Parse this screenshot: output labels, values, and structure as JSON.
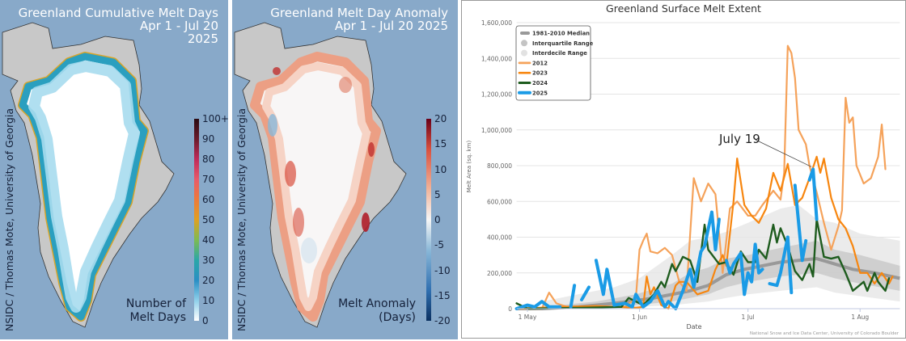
{
  "left_map": {
    "title_lines": [
      "Greenland Cumulative Melt Days",
      "Apr 1 - Jul 20",
      "2025"
    ],
    "credit": "NSIDC / Thomas Mote, University of Georgia",
    "colorbar_labels": [
      "100+",
      "90",
      "80",
      "70",
      "60",
      "50",
      "40",
      "30",
      "20",
      "10",
      "0"
    ],
    "colorbar_colors": [
      "#ffffff",
      "#8fd0ea",
      "#2a8fc4",
      "#2aa7a8",
      "#7dbb52",
      "#e0a020",
      "#ee7a3a",
      "#e85a6a",
      "#c02a5a",
      "#6a1a2a",
      "#2a0a10"
    ],
    "legend_lines": [
      "Number of",
      "Melt Days"
    ]
  },
  "middle_map": {
    "title_lines": [
      "Greenland Melt Day Anomaly",
      "Apr 1 - Jul 20 2025"
    ],
    "credit": "NSIDC / Thomas Mote, University of Georgia",
    "colorbar_labels": [
      "20",
      "15",
      "10",
      "5",
      "0",
      "-5",
      "-10",
      "-15",
      "-20"
    ],
    "colorbar_colors": [
      "#0b3060",
      "#2f6fb0",
      "#8ab8d8",
      "#f6f6f6",
      "#f2b49a",
      "#d9503e",
      "#6a0018"
    ],
    "legend_lines": [
      "Melt Anomaly",
      "(Days)"
    ]
  },
  "chart_data": {
    "type": "line",
    "title": "Greenland Surface Melt Extent",
    "xlabel": "Date",
    "ylabel": "Melt Area (sq. km)",
    "ylim": [
      0,
      1600000
    ],
    "yticks": [
      "0",
      "200,000",
      "400,000",
      "600,000",
      "800,000",
      "1,000,000",
      "1,200,000",
      "1,400,000",
      "1,600,000"
    ],
    "ytick_values": [
      0,
      200000,
      400000,
      600000,
      800000,
      1000000,
      1200000,
      1400000,
      1600000
    ],
    "xticks": [
      {
        "label": "1 May",
        "date": "05-01"
      },
      {
        "label": "1 Jun",
        "date": "06-01"
      },
      {
        "label": "1 Jul",
        "date": "07-01"
      },
      {
        "label": "1 Aug",
        "date": "08-01"
      }
    ],
    "xlim": [
      "04-28",
      "08-12"
    ],
    "grid": true,
    "legend_position": "top-left",
    "source": "National Snow and Ice Data Center, University of Colorado Boulder",
    "annotation": {
      "text": "July 19",
      "date": "07-19",
      "value": 780000
    },
    "median": {
      "name": "1981-2010 Median",
      "color": "#999999",
      "points": [
        [
          "04-28",
          0
        ],
        [
          "05-05",
          0
        ],
        [
          "05-10",
          5000
        ],
        [
          "05-15",
          10000
        ],
        [
          "05-20",
          20000
        ],
        [
          "05-25",
          30000
        ],
        [
          "05-31",
          45000
        ],
        [
          "06-05",
          60000
        ],
        [
          "06-10",
          80000
        ],
        [
          "06-15",
          100000
        ],
        [
          "06-20",
          130000
        ],
        [
          "06-25",
          190000
        ],
        [
          "06-30",
          220000
        ],
        [
          "07-05",
          240000
        ],
        [
          "07-10",
          260000
        ],
        [
          "07-15",
          270000
        ],
        [
          "07-20",
          280000
        ],
        [
          "07-25",
          250000
        ],
        [
          "07-30",
          220000
        ],
        [
          "08-05",
          200000
        ],
        [
          "08-12",
          170000
        ]
      ]
    },
    "interquartile_range": {
      "name": "Interquartile Range",
      "color": "#c8c8c8",
      "points": [
        [
          "05-10",
          0,
          20000
        ],
        [
          "05-20",
          5000,
          40000
        ],
        [
          "05-31",
          20000,
          80000
        ],
        [
          "06-10",
          40000,
          140000
        ],
        [
          "06-15",
          60000,
          200000
        ],
        [
          "06-20",
          80000,
          230000
        ],
        [
          "06-25",
          120000,
          280000
        ],
        [
          "07-01",
          150000,
          300000
        ],
        [
          "07-10",
          180000,
          340000
        ],
        [
          "07-20",
          200000,
          380000
        ],
        [
          "07-25",
          170000,
          330000
        ],
        [
          "08-01",
          140000,
          300000
        ],
        [
          "08-12",
          100000,
          240000
        ]
      ]
    },
    "interdecile_range": {
      "name": "Interdecile Range",
      "color": "#e6e6e6",
      "points": [
        [
          "05-05",
          0,
          40000
        ],
        [
          "05-15",
          0,
          80000
        ],
        [
          "05-25",
          0,
          120000
        ],
        [
          "06-01",
          10000,
          170000
        ],
        [
          "06-10",
          20000,
          300000
        ],
        [
          "06-15",
          30000,
          380000
        ],
        [
          "06-20",
          40000,
          400000
        ],
        [
          "06-25",
          60000,
          430000
        ],
        [
          "07-01",
          80000,
          480000
        ],
        [
          "07-10",
          100000,
          560000
        ],
        [
          "07-15",
          110000,
          580000
        ],
        [
          "07-20",
          120000,
          500000
        ],
        [
          "07-25",
          90000,
          480000
        ],
        [
          "08-01",
          70000,
          420000
        ],
        [
          "08-12",
          40000,
          380000
        ]
      ]
    },
    "series": [
      {
        "name": "2012",
        "color": "#f5a25a",
        "width": 2.2,
        "points": [
          [
            "04-28",
            0
          ],
          [
            "05-05",
            0
          ],
          [
            "05-07",
            90000
          ],
          [
            "05-09",
            30000
          ],
          [
            "05-12",
            10000
          ],
          [
            "05-20",
            10000
          ],
          [
            "05-28",
            10000
          ],
          [
            "05-31",
            60000
          ],
          [
            "06-01",
            330000
          ],
          [
            "06-02",
            380000
          ],
          [
            "06-03",
            420000
          ],
          [
            "06-04",
            320000
          ],
          [
            "06-06",
            310000
          ],
          [
            "06-08",
            340000
          ],
          [
            "06-10",
            300000
          ],
          [
            "06-12",
            150000
          ],
          [
            "06-14",
            100000
          ],
          [
            "06-16",
            730000
          ],
          [
            "06-18",
            600000
          ],
          [
            "06-20",
            700000
          ],
          [
            "06-22",
            640000
          ],
          [
            "06-24",
            200000
          ],
          [
            "06-26",
            560000
          ],
          [
            "06-28",
            600000
          ],
          [
            "07-01",
            520000
          ],
          [
            "07-03",
            520000
          ],
          [
            "07-05",
            580000
          ],
          [
            "07-08",
            660000
          ],
          [
            "07-10",
            610000
          ],
          [
            "07-11",
            760000
          ],
          [
            "07-12",
            1470000
          ],
          [
            "07-13",
            1430000
          ],
          [
            "07-14",
            1290000
          ],
          [
            "07-15",
            1000000
          ],
          [
            "07-17",
            920000
          ],
          [
            "07-18",
            800000
          ],
          [
            "07-20",
            650000
          ],
          [
            "07-22",
            480000
          ],
          [
            "07-24",
            330000
          ],
          [
            "07-26",
            460000
          ],
          [
            "07-27",
            550000
          ],
          [
            "07-28",
            1180000
          ],
          [
            "07-29",
            1040000
          ],
          [
            "07-30",
            1070000
          ],
          [
            "07-31",
            800000
          ],
          [
            "08-02",
            700000
          ],
          [
            "08-04",
            730000
          ],
          [
            "08-06",
            850000
          ],
          [
            "08-07",
            1030000
          ],
          [
            "08-08",
            780000
          ]
        ]
      },
      {
        "name": "2023",
        "color": "#f7860f",
        "width": 2.2,
        "points": [
          [
            "04-28",
            0
          ],
          [
            "05-10",
            10000
          ],
          [
            "05-20",
            15000
          ],
          [
            "05-31",
            5000
          ],
          [
            "06-02",
            10000
          ],
          [
            "06-03",
            180000
          ],
          [
            "06-04",
            80000
          ],
          [
            "06-05",
            120000
          ],
          [
            "06-07",
            20000
          ],
          [
            "06-09",
            0
          ],
          [
            "06-11",
            130000
          ],
          [
            "06-12",
            150000
          ],
          [
            "06-14",
            150000
          ],
          [
            "06-17",
            80000
          ],
          [
            "06-20",
            100000
          ],
          [
            "06-22",
            220000
          ],
          [
            "06-24",
            300000
          ],
          [
            "06-25",
            240000
          ],
          [
            "06-26",
            420000
          ],
          [
            "06-27",
            600000
          ],
          [
            "06-28",
            840000
          ],
          [
            "06-30",
            580000
          ],
          [
            "07-02",
            520000
          ],
          [
            "07-04",
            480000
          ],
          [
            "07-06",
            560000
          ],
          [
            "07-08",
            760000
          ],
          [
            "07-10",
            660000
          ],
          [
            "07-12",
            810000
          ],
          [
            "07-14",
            580000
          ],
          [
            "07-16",
            620000
          ],
          [
            "07-18",
            730000
          ],
          [
            "07-20",
            850000
          ],
          [
            "07-21",
            760000
          ],
          [
            "07-22",
            840000
          ],
          [
            "07-24",
            620000
          ],
          [
            "07-26",
            500000
          ],
          [
            "07-28",
            450000
          ],
          [
            "07-30",
            350000
          ],
          [
            "08-01",
            200000
          ],
          [
            "08-03",
            200000
          ],
          [
            "08-05",
            140000
          ],
          [
            "08-07",
            200000
          ],
          [
            "08-09",
            140000
          ],
          [
            "08-10",
            180000
          ]
        ]
      },
      {
        "name": "2024",
        "color": "#1e5c1e",
        "width": 2.4,
        "points": [
          [
            "04-28",
            30000
          ],
          [
            "05-01",
            0
          ],
          [
            "05-15",
            5000
          ],
          [
            "05-27",
            10000
          ],
          [
            "05-29",
            60000
          ],
          [
            "05-31",
            40000
          ],
          [
            "06-02",
            20000
          ],
          [
            "06-05",
            80000
          ],
          [
            "06-07",
            150000
          ],
          [
            "06-08",
            120000
          ],
          [
            "06-10",
            250000
          ],
          [
            "06-11",
            210000
          ],
          [
            "06-13",
            290000
          ],
          [
            "06-15",
            270000
          ],
          [
            "06-17",
            150000
          ],
          [
            "06-19",
            470000
          ],
          [
            "06-20",
            330000
          ],
          [
            "06-23",
            250000
          ],
          [
            "06-25",
            260000
          ],
          [
            "06-27",
            190000
          ],
          [
            "06-29",
            320000
          ],
          [
            "07-01",
            260000
          ],
          [
            "07-03",
            260000
          ],
          [
            "07-04",
            330000
          ],
          [
            "07-06",
            280000
          ],
          [
            "07-08",
            470000
          ],
          [
            "07-09",
            370000
          ],
          [
            "07-10",
            450000
          ],
          [
            "07-12",
            350000
          ],
          [
            "07-14",
            210000
          ],
          [
            "07-16",
            160000
          ],
          [
            "07-18",
            250000
          ],
          [
            "07-19",
            180000
          ],
          [
            "07-20",
            500000
          ],
          [
            "07-22",
            290000
          ],
          [
            "07-24",
            280000
          ],
          [
            "07-26",
            290000
          ],
          [
            "07-28",
            200000
          ],
          [
            "07-30",
            100000
          ],
          [
            "08-02",
            150000
          ],
          [
            "08-03",
            100000
          ],
          [
            "08-05",
            200000
          ],
          [
            "08-06",
            150000
          ],
          [
            "08-08",
            100000
          ],
          [
            "08-09",
            170000
          ]
        ]
      },
      {
        "name": "2025",
        "color": "#1a9be6",
        "width": 4,
        "points": [
          [
            "04-28",
            0
          ],
          [
            "05-01",
            20000
          ],
          [
            "05-03",
            10000
          ],
          [
            "05-05",
            40000
          ],
          [
            "05-07",
            10000
          ],
          [
            "05-10",
            10000
          ],
          [
            "05-12",
            null
          ],
          [
            "05-13",
            10000
          ],
          [
            "05-14",
            130000
          ],
          [
            "05-15",
            null
          ],
          [
            "05-16",
            50000
          ],
          [
            "05-18",
            120000
          ],
          [
            "05-19",
            null
          ],
          [
            "05-20",
            270000
          ],
          [
            "05-22",
            80000
          ],
          [
            "05-23",
            220000
          ],
          [
            "05-25",
            20000
          ],
          [
            "05-28",
            30000
          ],
          [
            "05-30",
            10000
          ],
          [
            "05-31",
            80000
          ],
          [
            "06-02",
            10000
          ],
          [
            "06-04",
            40000
          ],
          [
            "06-06",
            100000
          ],
          [
            "06-08",
            10000
          ],
          [
            "06-09",
            40000
          ],
          [
            "06-11",
            0
          ],
          [
            "06-13",
            100000
          ],
          [
            "06-15",
            220000
          ],
          [
            "06-16",
            120000
          ],
          [
            "06-18",
            320000
          ],
          [
            "06-19",
            350000
          ],
          [
            "06-21",
            540000
          ],
          [
            "06-22",
            330000
          ],
          [
            "06-23",
            500000
          ],
          [
            "06-24",
            null
          ],
          [
            "06-25",
            270000
          ],
          [
            "06-26",
            200000
          ],
          [
            "06-27",
            250000
          ],
          [
            "06-29",
            310000
          ],
          [
            "06-30",
            80000
          ],
          [
            "07-01",
            200000
          ],
          [
            "07-02",
            150000
          ],
          [
            "07-03",
            360000
          ],
          [
            "07-04",
            200000
          ],
          [
            "07-05",
            220000
          ],
          [
            "07-06",
            null
          ],
          [
            "07-07",
            140000
          ],
          [
            "07-09",
            130000
          ],
          [
            "07-10",
            200000
          ],
          [
            "07-12",
            400000
          ],
          [
            "07-13",
            90000
          ],
          [
            "07-13b",
            null
          ],
          [
            "07-14",
            690000
          ],
          [
            "07-16",
            270000
          ],
          [
            "07-17",
            380000
          ],
          [
            "07-17b",
            null
          ],
          [
            "07-18",
            720000
          ],
          [
            "07-19",
            780000
          ],
          [
            "07-20",
            500000
          ]
        ]
      }
    ]
  }
}
